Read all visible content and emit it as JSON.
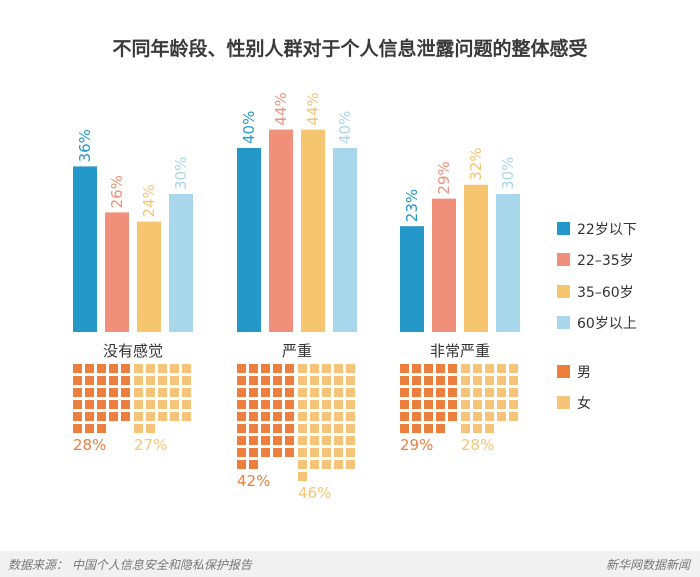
{
  "title": "不同年龄段、性别人群对于个人信息泄露问题的整体感受",
  "footer": {
    "source": "数据来源： 中国个人信息安全和隐私保护报告",
    "brand": "新华网数据新闻"
  },
  "colors": {
    "age_under22": "#2499c9",
    "age_22_35": "#f0907a",
    "age_35_60": "#f6c570",
    "age_60plus": "#a8d6ea",
    "male": "#ec7f3d",
    "female": "#f5c478",
    "text": "#333333"
  },
  "chart_data": [
    {
      "type": "bar",
      "categories": [
        "没有感觉",
        "严重",
        "非常严重"
      ],
      "series": [
        {
          "name": "22岁以下",
          "values": [
            36,
            40,
            23
          ],
          "labels": [
            "36%",
            "40%",
            "23%"
          ]
        },
        {
          "name": "22–35岁",
          "values": [
            26,
            44,
            29
          ],
          "labels": [
            "26%",
            "44%",
            "29%"
          ]
        },
        {
          "name": "35–60岁",
          "values": [
            24,
            44,
            32
          ],
          "labels": [
            "24%",
            "44%",
            "32%"
          ]
        },
        {
          "name": "60岁以上",
          "values": [
            30,
            40,
            30
          ],
          "labels": [
            "30%",
            "40%",
            "30%"
          ]
        }
      ],
      "ylim": [
        0,
        50
      ],
      "grid": false,
      "legend": "right"
    },
    {
      "type": "waffle",
      "categories": [
        "没有感觉",
        "严重",
        "非常严重"
      ],
      "series": [
        {
          "name": "男",
          "values": [
            28,
            42,
            29
          ],
          "labels": [
            "28%",
            "42%",
            "29%"
          ]
        },
        {
          "name": "女",
          "values": [
            27,
            46,
            28
          ],
          "labels": [
            "27%",
            "46%",
            "28%"
          ]
        }
      ],
      "legend": "right"
    }
  ]
}
